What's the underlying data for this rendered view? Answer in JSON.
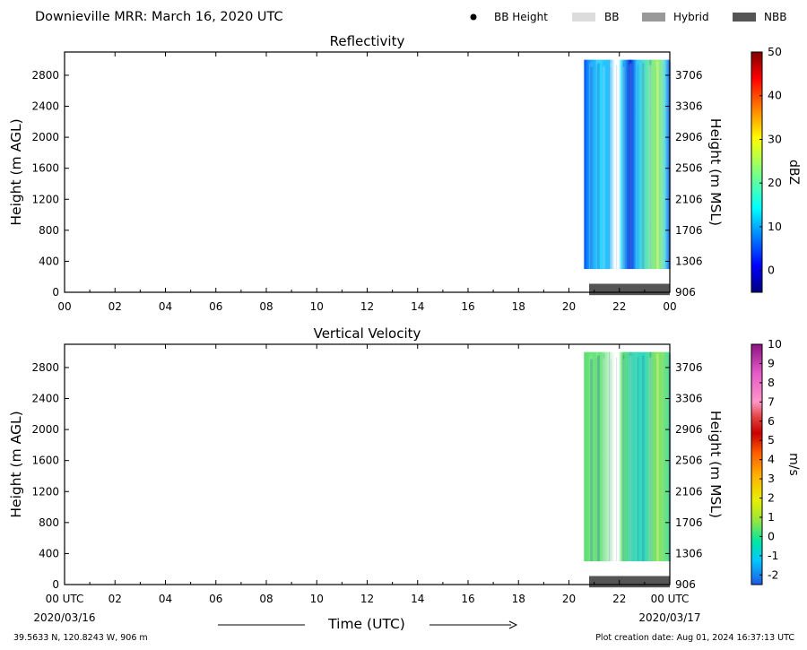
{
  "header": {
    "title": "Downieville MRR:  March 16, 2020 UTC",
    "legend": [
      {
        "label": "BB Height",
        "kind": "dot",
        "color": "#000000"
      },
      {
        "label": "BB",
        "kind": "swatch",
        "color": "#dcdcdc"
      },
      {
        "label": "Hybrid",
        "kind": "swatch",
        "color": "#999999"
      },
      {
        "label": "NBB",
        "kind": "swatch",
        "color": "#555555"
      }
    ]
  },
  "footer": {
    "location": "39.5633 N, 120.8243 W, 906 m",
    "creation": "Plot creation date: Aug 01, 2024 16:37:13 UTC",
    "time_label": "Time (UTC)",
    "start_date": "2020/03/16",
    "end_date": "2020/03/17"
  },
  "chart_data": [
    {
      "type": "heatmap",
      "title": "Reflectivity",
      "ylabel": "Height (m AGL)",
      "ylabel_right": "Height (m MSL)",
      "x_ticks": [
        "00",
        "02",
        "04",
        "06",
        "08",
        "10",
        "12",
        "14",
        "16",
        "18",
        "20",
        "22",
        "00"
      ],
      "xlim_hours": [
        0,
        24
      ],
      "ylim": [
        0,
        3100
      ],
      "y_ticks": [
        0,
        400,
        800,
        1200,
        1600,
        2000,
        2400,
        2800
      ],
      "y_ticks_right": [
        "906",
        "1306",
        "1706",
        "2106",
        "2506",
        "2906",
        "3306",
        "3706"
      ],
      "data_extent": {
        "start_hour": 20.6,
        "end_hour": 24.0,
        "min_height": 300,
        "max_height": 3000
      },
      "colorbar": {
        "label": "dBZ",
        "min": -5,
        "max": 50,
        "ticks": [
          0,
          10,
          20,
          30,
          40,
          50
        ],
        "colormap": "jet"
      },
      "band_bar": {
        "category": "NBB",
        "start_hour": 20.8,
        "end_hour": 24.0
      }
    },
    {
      "type": "heatmap",
      "title": "Vertical Velocity",
      "ylabel": "Height (m AGL)",
      "ylabel_right": "Height (m MSL)",
      "x_ticks": [
        "00 UTC",
        "02",
        "04",
        "06",
        "08",
        "10",
        "12",
        "14",
        "16",
        "18",
        "20",
        "22",
        "00 UTC"
      ],
      "xlim_hours": [
        0,
        24
      ],
      "ylim": [
        0,
        3100
      ],
      "y_ticks": [
        0,
        400,
        800,
        1200,
        1600,
        2000,
        2400,
        2800
      ],
      "y_ticks_right": [
        "906",
        "1306",
        "1706",
        "2106",
        "2506",
        "2906",
        "3306",
        "3706"
      ],
      "data_extent": {
        "start_hour": 20.6,
        "end_hour": 24.0,
        "min_height": 300,
        "max_height": 3000
      },
      "colorbar": {
        "label": "m/s",
        "min": -2.5,
        "max": 10,
        "ticks": [
          -2,
          -1,
          0,
          1,
          2,
          3,
          4,
          5,
          6,
          7,
          8,
          9,
          10
        ],
        "colormap": "velocity"
      },
      "band_bar": {
        "category": "NBB",
        "start_hour": 20.8,
        "end_hour": 24.0
      }
    }
  ]
}
